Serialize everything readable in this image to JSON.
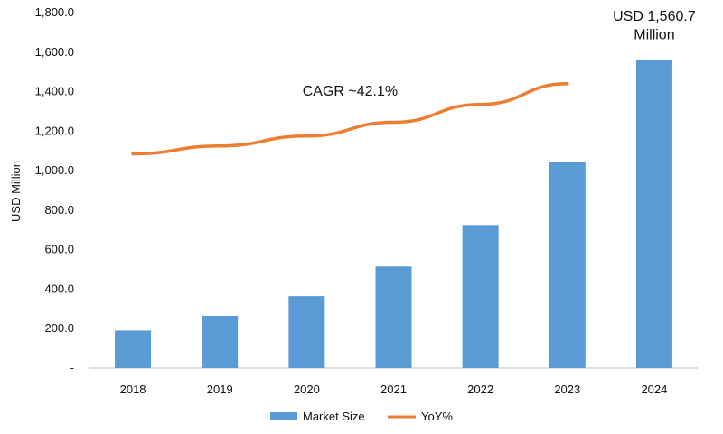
{
  "chart_data": {
    "type": "bar",
    "title": "",
    "xlabel": "",
    "ylabel": "USD Million",
    "ylim": [
      0,
      1800
    ],
    "y_ticks": [
      "-",
      "200.0",
      "400.0",
      "600.0",
      "800.0",
      "1,000.0",
      "1,200.0",
      "1,400.0",
      "1,600.0",
      "1,800.0"
    ],
    "categories": [
      "2018",
      "2019",
      "2020",
      "2021",
      "2022",
      "2023",
      "2024"
    ],
    "series": [
      {
        "name": "Market Size",
        "type": "bar",
        "color": "#5b9bd5",
        "values": [
          190,
          265,
          365,
          515,
          725,
          1045,
          1560.7
        ]
      },
      {
        "name": "YoY%",
        "type": "line",
        "color": "#ed7d31",
        "values": [
          1085,
          1125,
          1175,
          1245,
          1335,
          1440,
          null
        ]
      }
    ],
    "annotations": [
      {
        "text": "CAGR ~42.1%",
        "x": "2020–2021",
        "y": 1380
      },
      {
        "text": "USD 1,560.7",
        "x": "2024",
        "y": 1760
      },
      {
        "text": "Million",
        "x": "2024",
        "y": 1665
      }
    ],
    "legend": {
      "position": "bottom",
      "items": [
        "Market Size",
        "YoY%"
      ]
    },
    "grid": false
  }
}
